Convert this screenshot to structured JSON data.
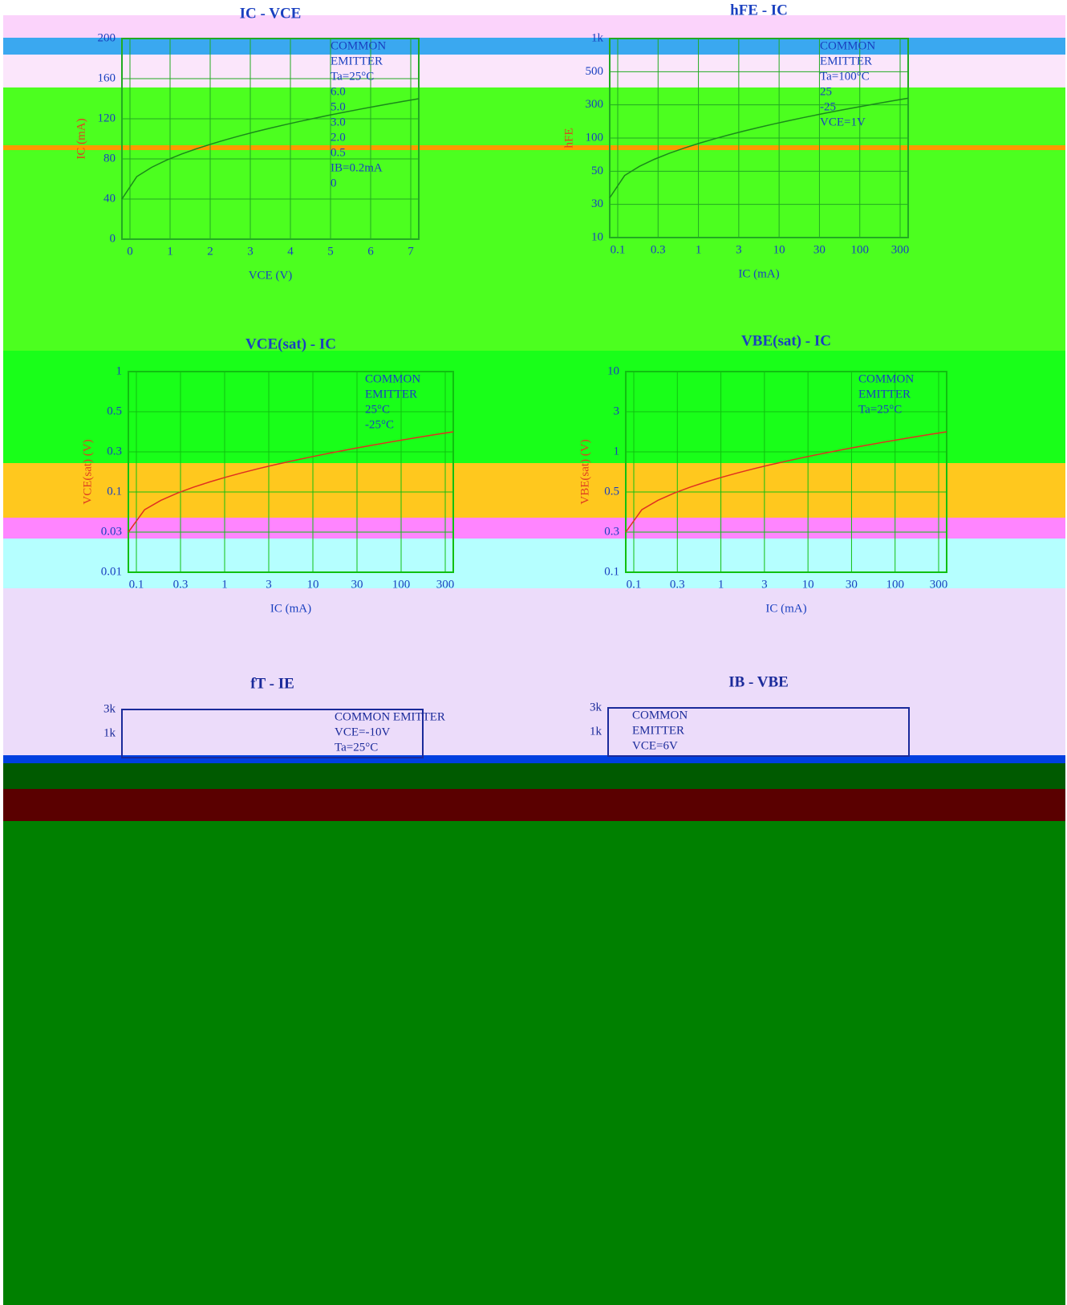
{
  "panels": [
    {
      "title": "IC - VCE",
      "x_label": "VCE (V)",
      "y_label": "IC (mA)",
      "x_ticks": [
        "0",
        "1",
        "2",
        "3",
        "4",
        "5",
        "6",
        "7"
      ],
      "y_ticks": [
        "0",
        "40",
        "80",
        "120",
        "160",
        "200"
      ],
      "notes": [
        "COMMON",
        "EMITTER",
        "Ta=25°C",
        "6.0",
        "5.0",
        "3.0",
        "2.0",
        "0.5",
        "IB=0.2mA",
        "0"
      ]
    },
    {
      "title": "hFE - IC",
      "x_label": "IC (mA)",
      "y_label": "hFE",
      "x_ticks": [
        "0.1",
        "0.3",
        "1",
        "3",
        "10",
        "30",
        "100",
        "300"
      ],
      "y_ticks": [
        "10",
        "30",
        "50",
        "100",
        "300",
        "500",
        "1k"
      ],
      "notes": [
        "COMMON",
        "EMITTER",
        "Ta=100°C",
        "25",
        "-25",
        "VCE=1V"
      ]
    },
    {
      "title": "VCE(sat) - IC",
      "x_label": "IC (mA)",
      "y_label": "VCE(sat) (V)",
      "x_ticks": [
        "0.1",
        "0.3",
        "1",
        "3",
        "10",
        "30",
        "100",
        "300"
      ],
      "y_ticks": [
        "0.01",
        "0.03",
        "0.1",
        "0.3",
        "0.5",
        "1"
      ],
      "notes": [
        "COMMON",
        "EMITTER",
        "25°C",
        "-25°C"
      ]
    },
    {
      "title": "VBE(sat) - IC",
      "x_label": "IC (mA)",
      "y_label": "VBE(sat) (V)",
      "x_ticks": [
        "0.1",
        "0.3",
        "1",
        "3",
        "10",
        "30",
        "100",
        "300"
      ],
      "y_ticks": [
        "0.1",
        "0.3",
        "0.5",
        "1",
        "3",
        "10"
      ],
      "notes": [
        "COMMON",
        "EMITTER",
        "Ta=25°C"
      ]
    },
    {
      "title": "fT - IE",
      "x_label": "",
      "y_label": "",
      "x_ticks": [],
      "y_ticks": [
        "3k",
        "1k"
      ],
      "notes": [
        "COMMON EMITTER",
        "VCE=-10V",
        "Ta=25°C"
      ]
    },
    {
      "title": "IB - VBE",
      "x_label": "",
      "y_label": "",
      "x_ticks": [],
      "y_ticks": [
        "3k",
        "1k"
      ],
      "notes": [
        "COMMON",
        "EMITTER",
        "VCE=6V"
      ]
    }
  ]
}
